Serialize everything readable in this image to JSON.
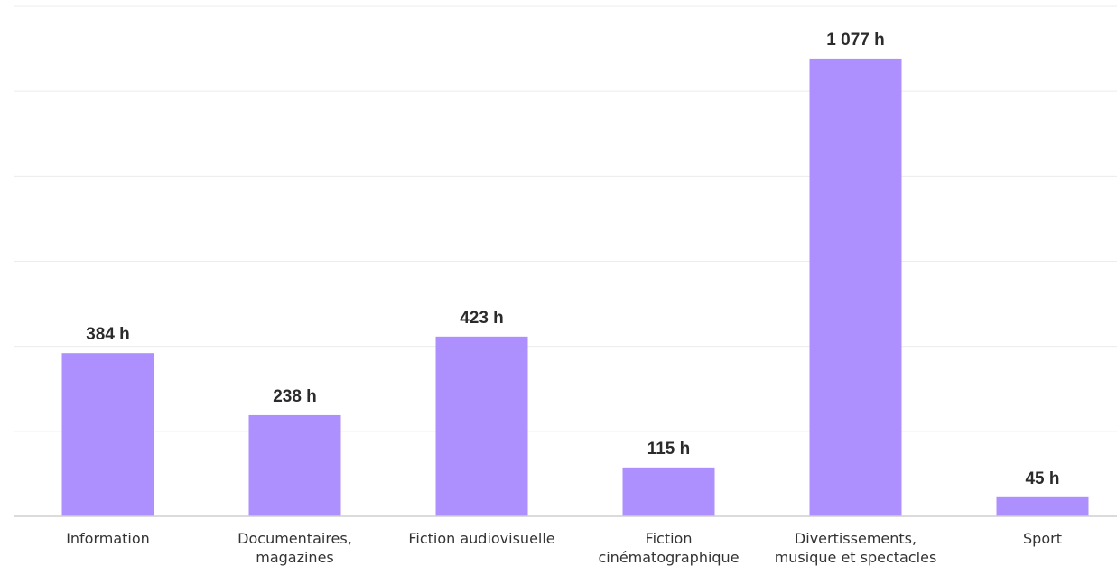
{
  "chart_data": {
    "type": "bar",
    "categories": [
      [
        "Information"
      ],
      [
        "Documentaires,",
        "magazines"
      ],
      [
        "Fiction audiovisuelle"
      ],
      [
        "Fiction",
        "cinématographique"
      ],
      [
        "Divertissements,",
        "musique et spectacles"
      ],
      [
        "Sport"
      ]
    ],
    "values": [
      384,
      238,
      423,
      115,
      1077,
      45
    ],
    "value_labels": [
      "384 h",
      "238 h",
      "423 h",
      "115  h",
      "1 077 h",
      "45 h"
    ],
    "unit": "h",
    "ylim": [
      0,
      1200
    ],
    "grid": true,
    "bar_color": "#ad8ffd",
    "title": "",
    "xlabel": "",
    "ylabel": ""
  }
}
